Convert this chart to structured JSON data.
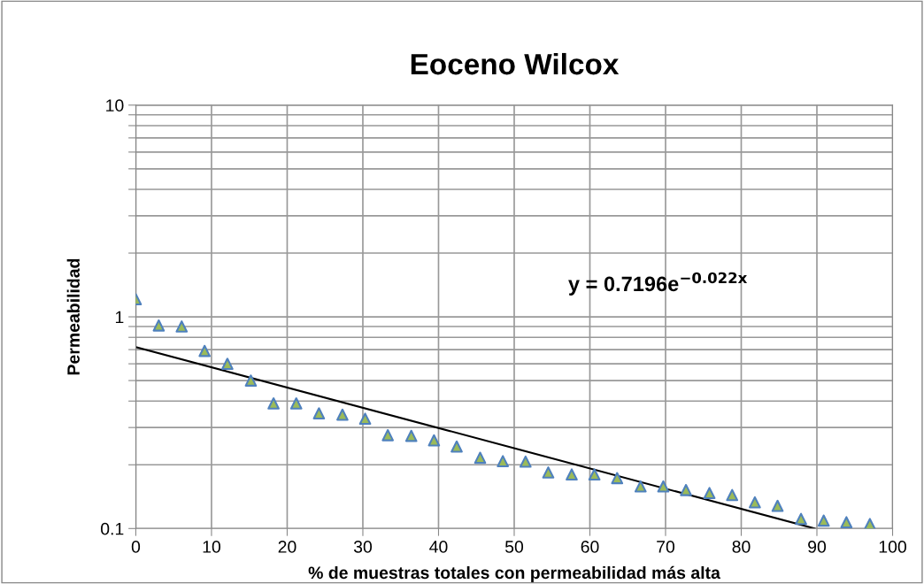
{
  "chart_data": {
    "type": "scatter",
    "title": "Eoceno Wilcox",
    "xlabel": "% de muestras totales con permeabilidad más alta",
    "ylabel": "Permeabilidad",
    "log": "y",
    "grid": true,
    "legend": false,
    "xlim": [
      0,
      100
    ],
    "xticks": [
      0,
      10,
      20,
      30,
      40,
      50,
      60,
      70,
      80,
      90,
      100
    ],
    "ylim": [
      0.1,
      10
    ],
    "yticks": [
      0.1,
      {
        "value": 0.2,
        "label": null
      },
      {
        "value": 0.3,
        "label": null
      },
      {
        "value": 0.4,
        "label": null
      },
      {
        "value": 0.5,
        "label": null
      },
      {
        "value": 0.6,
        "label": null
      },
      {
        "value": 0.7,
        "label": null
      },
      {
        "value": 0.8,
        "label": null
      },
      {
        "value": 0.9,
        "label": null
      },
      1,
      {
        "value": 2,
        "label": null
      },
      {
        "value": 3,
        "label": null
      },
      {
        "value": 4,
        "label": null
      },
      {
        "value": 5,
        "label": null
      },
      {
        "value": 6,
        "label": null
      },
      {
        "value": 7,
        "label": null
      },
      {
        "value": 8,
        "label": null
      },
      {
        "value": 9,
        "label": null
      },
      10
    ],
    "annotations": [
      "y = 0.7196e$^{−0.022x}$"
    ],
    "series": [
      {
        "marker": "triangle",
        "color": "#9bbb59",
        "x": [
          0,
          3.03,
          6.06,
          9.09,
          12.1,
          15.2,
          18.2,
          21.2,
          24.2,
          27.3,
          30.3,
          33.3,
          36.4,
          39.4,
          42.4,
          45.5,
          48.5,
          51.5,
          54.5,
          57.6,
          60.6,
          63.6,
          66.7,
          69.7,
          72.7,
          75.8,
          78.8,
          81.8,
          84.8,
          87.9,
          90.9,
          93.9,
          97.0
        ],
        "values": [
          1.21,
          0.91,
          0.9,
          0.69,
          0.6,
          0.5,
          0.39,
          0.39,
          0.35,
          0.345,
          0.33,
          0.276,
          0.274,
          0.261,
          0.244,
          0.216,
          0.208,
          0.207,
          0.184,
          0.18,
          0.18,
          0.173,
          0.158,
          0.158,
          0.152,
          0.147,
          0.144,
          0.133,
          0.128,
          0.111,
          0.109,
          0.107,
          0.105
        ]
      },
      {
        "type": "line",
        "color": "#000000",
        "x": [
          0,
          89.7
        ],
        "values": [
          0.7196,
          0.1
        ]
      }
    ]
  }
}
